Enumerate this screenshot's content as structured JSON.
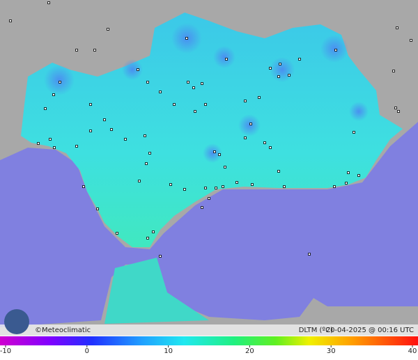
{
  "header": {
    "credit": "©Meteoclimatic",
    "variable": "DLTM (ºC)",
    "timestamp": "20-04-2025 @ 00:16 UTC"
  },
  "colorbar": {
    "min": -10,
    "max": 40,
    "ticks": [
      -10,
      0,
      10,
      20,
      30,
      40
    ]
  }
}
